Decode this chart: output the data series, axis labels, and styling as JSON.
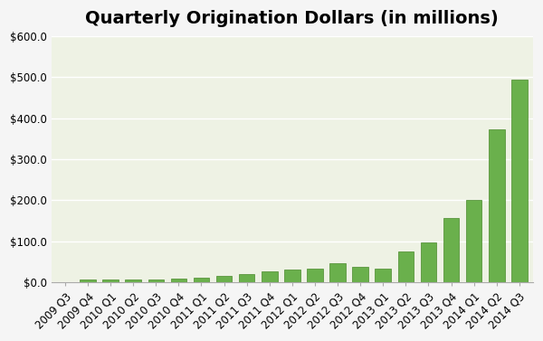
{
  "title": "Quarterly Origination Dollars (in millions)",
  "categories": [
    "2009 Q3",
    "2009 Q4",
    "2010 Q1",
    "2010 Q2",
    "2010 Q3",
    "2010 Q4",
    "2011 Q1",
    "2011 Q2",
    "2011 Q3",
    "2011 Q4",
    "2012 Q1",
    "2012 Q2",
    "2012 Q3",
    "2012 Q4",
    "2013 Q1",
    "2013 Q2",
    "2013 Q3",
    "2013 Q4",
    "2014 Q1",
    "2014 Q2",
    "2014 Q3"
  ],
  "values": [
    1.0,
    6.0,
    7.0,
    6.5,
    7.0,
    8.0,
    11.0,
    16.0,
    21.0,
    27.0,
    30.0,
    34.0,
    46.0,
    38.0,
    33.0,
    75.0,
    98.0,
    157.0,
    200.0,
    373.0,
    495.0
  ],
  "bar_color": "#6ab04c",
  "bar_edge_color": "#4a8a2c",
  "background_color": "#f0f4e8",
  "plot_bg_color": "#eef2e4",
  "ylim": [
    0,
    600
  ],
  "yticks": [
    0,
    100,
    200,
    300,
    400,
    500,
    600
  ],
  "ytick_labels": [
    "$0.0",
    "$100.0",
    "$200.0",
    "$300.0",
    "$400.0",
    "$500.0",
    "$600.0"
  ],
  "title_fontsize": 14,
  "tick_fontsize": 8.5,
  "grid_color": "#ffffff",
  "outer_bg": "#f5f5f5"
}
